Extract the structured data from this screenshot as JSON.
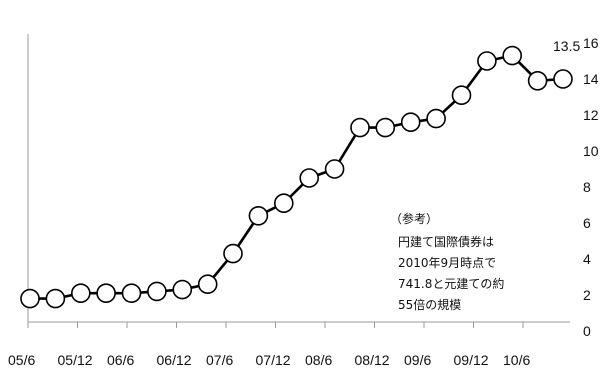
{
  "chart_data": {
    "type": "line",
    "title": "",
    "xlabel": "",
    "ylabel": "",
    "x_tick_labels": [
      "05/6",
      "05/12",
      "06/6",
      "06/12",
      "07/6",
      "07/12",
      "08/6",
      "08/12",
      "09/6",
      "09/12",
      "10/6"
    ],
    "y_tick_labels": [
      "0",
      "2",
      "4",
      "6",
      "8",
      "10",
      "12",
      "14",
      "16"
    ],
    "ylim": [
      0,
      16
    ],
    "grid": false,
    "series": [
      {
        "values": [
          1.3,
          1.3,
          1.6,
          1.6,
          1.6,
          1.7,
          1.8,
          2.1,
          3.8,
          5.9,
          6.6,
          8.0,
          8.5,
          10.8,
          10.8,
          11.1,
          11.3,
          12.6,
          14.5,
          14.8,
          13.4,
          13.5
        ]
      }
    ],
    "last_value_label": "13.5",
    "annotation": [
      "（参考）",
      "円建て国際債券は",
      "2010年9月時点で",
      "741.8と元建ての約",
      "55倍の規模"
    ]
  }
}
